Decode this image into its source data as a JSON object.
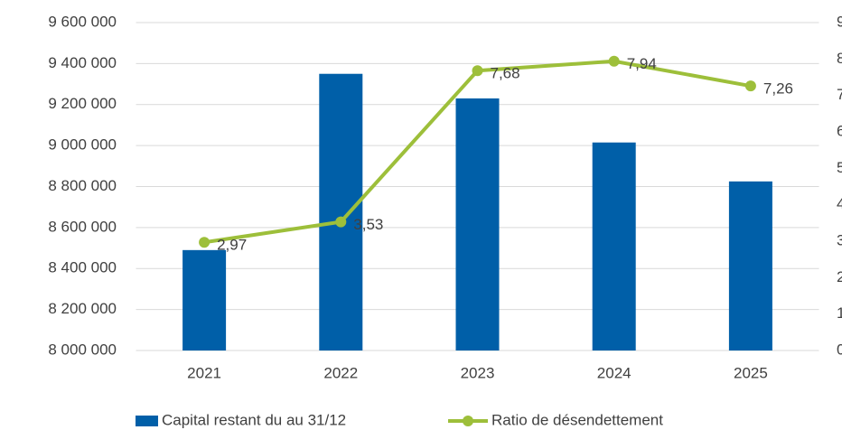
{
  "chart_data": {
    "type": "bar_line",
    "categories": [
      "2021",
      "2022",
      "2023",
      "2024",
      "2025"
    ],
    "series": [
      {
        "name": "Capital restant du au 31/12",
        "type": "bar",
        "color": "#005fa8",
        "values": [
          8490000,
          9350000,
          9230000,
          9015000,
          8825000
        ]
      },
      {
        "name": "Ratio de désendettement",
        "type": "line",
        "axis": "y2",
        "color": "#9dbf3a",
        "values": [
          2.97,
          3.53,
          7.68,
          7.94,
          7.26
        ],
        "value_labels": [
          "2,97",
          "3,53",
          "7,68",
          "7,94",
          "7,26"
        ]
      }
    ],
    "ylim": [
      8000000,
      9600000
    ],
    "yticks": [
      {
        "value": 8000000,
        "label": "8 000 000"
      },
      {
        "value": 8200000,
        "label": "8 200 000"
      },
      {
        "value": 8400000,
        "label": "8 400 000"
      },
      {
        "value": 8600000,
        "label": "8 600 000"
      },
      {
        "value": 8800000,
        "label": "8 800 000"
      },
      {
        "value": 9000000,
        "label": "9 000 000"
      },
      {
        "value": 9200000,
        "label": "9 200 000"
      },
      {
        "value": 9400000,
        "label": "9 400 000"
      },
      {
        "value": 9600000,
        "label": "9 600 000"
      }
    ],
    "y2lim": [
      0,
      9
    ],
    "y2ticks": [
      0,
      1,
      2,
      3,
      4,
      5,
      6,
      7,
      8,
      9
    ],
    "grid": true,
    "legend": "bottom"
  }
}
